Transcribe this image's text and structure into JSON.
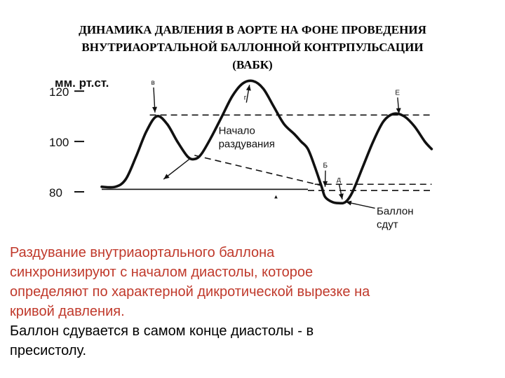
{
  "slide": {
    "title_lines": [
      "ДИНАМИКА ДАВЛЕНИЯ В АОРТЕ НА ФОНЕ ПРОВЕДЕНИЯ",
      "ВНУТРИАОРТАЛЬНОЙ БАЛЛОННОЙ КОНТРПУЛЬСАЦИИ",
      "(ВАБК)"
    ],
    "paragraph1_lines": [
      "Раздувание внутриаортального баллона",
      "синхронизируют с началом диастолы, которое",
      "определяют по характерной дикротической вырезке на",
      "кривой давления."
    ],
    "paragraph2_lines": [
      "Баллон сдувается в самом конце диастолы - в",
      "пресистолу."
    ],
    "colors": {
      "paragraph1": "#c0392b",
      "paragraph2": "#000000",
      "curve": "#111111"
    }
  },
  "chart_data": {
    "type": "line",
    "ylabel": "мм. рт.ст.",
    "yticks": [
      80,
      100,
      120
    ],
    "ylim": [
      70,
      127
    ],
    "xlim": [
      0,
      100
    ],
    "series": [
      {
        "points": [
          [
            0,
            82
          ],
          [
            4,
            82
          ],
          [
            7,
            85
          ],
          [
            10,
            94
          ],
          [
            13,
            104
          ],
          [
            16,
            110
          ],
          [
            19,
            107
          ],
          [
            22,
            100
          ],
          [
            25,
            94
          ],
          [
            27,
            93
          ],
          [
            29,
            95
          ],
          [
            32,
            102
          ],
          [
            35,
            110
          ],
          [
            38,
            118
          ],
          [
            41,
            123
          ],
          [
            44,
            124
          ],
          [
            47,
            121
          ],
          [
            50,
            114
          ],
          [
            53,
            107
          ],
          [
            56,
            103
          ],
          [
            58,
            100
          ],
          [
            60,
            97
          ],
          [
            62,
            90
          ],
          [
            64,
            82
          ],
          [
            65,
            78
          ],
          [
            67,
            76
          ],
          [
            69,
            75.5
          ],
          [
            71,
            76
          ],
          [
            73,
            80
          ],
          [
            76,
            90
          ],
          [
            79,
            100
          ],
          [
            82,
            108
          ],
          [
            85,
            111
          ],
          [
            88,
            110
          ],
          [
            91,
            106
          ],
          [
            94,
            100
          ],
          [
            96,
            97
          ]
        ]
      }
    ],
    "dashed_lines": [
      {
        "style": "dash",
        "points": [
          [
            14,
            110.5
          ],
          [
            96,
            110.5
          ]
        ]
      },
      {
        "style": "dash",
        "points": [
          [
            27,
            94.5
          ],
          [
            64,
            82.5
          ]
        ]
      },
      {
        "style": "dash",
        "points": [
          [
            62,
            83
          ],
          [
            96,
            83
          ]
        ]
      },
      {
        "style": "dash",
        "points": [
          [
            60,
            80.5
          ],
          [
            96,
            80.5
          ]
        ]
      },
      {
        "style": "solid",
        "points": [
          [
            0,
            81
          ],
          [
            60,
            81
          ]
        ]
      }
    ],
    "marker_letters": [
      {
        "label": "в",
        "x": 15,
        "y": 122,
        "arrow_to": [
          15.5,
          111.5
        ]
      },
      {
        "label": "г",
        "x": 42,
        "y": 116,
        "arrow_to": [
          43,
          122.5
        ]
      },
      {
        "label": "Б",
        "x": 65,
        "y": 89,
        "arrow_to": [
          65,
          82
        ]
      },
      {
        "label": "д",
        "x": 69,
        "y": 83.5,
        "arrow_to": [
          70,
          77
        ]
      },
      {
        "label": "Е",
        "x": 86,
        "y": 118,
        "arrow_to": [
          86.5,
          111
        ]
      }
    ],
    "annotations": [
      {
        "text_lines": [
          "Начало",
          "раздувания"
        ],
        "x": 34,
        "y": 103,
        "arrow_from": [
          26,
          93.5
        ],
        "arrow_to": [
          18,
          85
        ]
      },
      {
        "text_lines": [
          "Баллон",
          "сдут"
        ],
        "x": 80,
        "y": 71,
        "arrow_from": [
          79.5,
          73.5
        ],
        "arrow_to": [
          71,
          76
        ]
      }
    ],
    "xtick_mark": {
      "label": "▲",
      "x": 50.5,
      "y": 79
    }
  }
}
